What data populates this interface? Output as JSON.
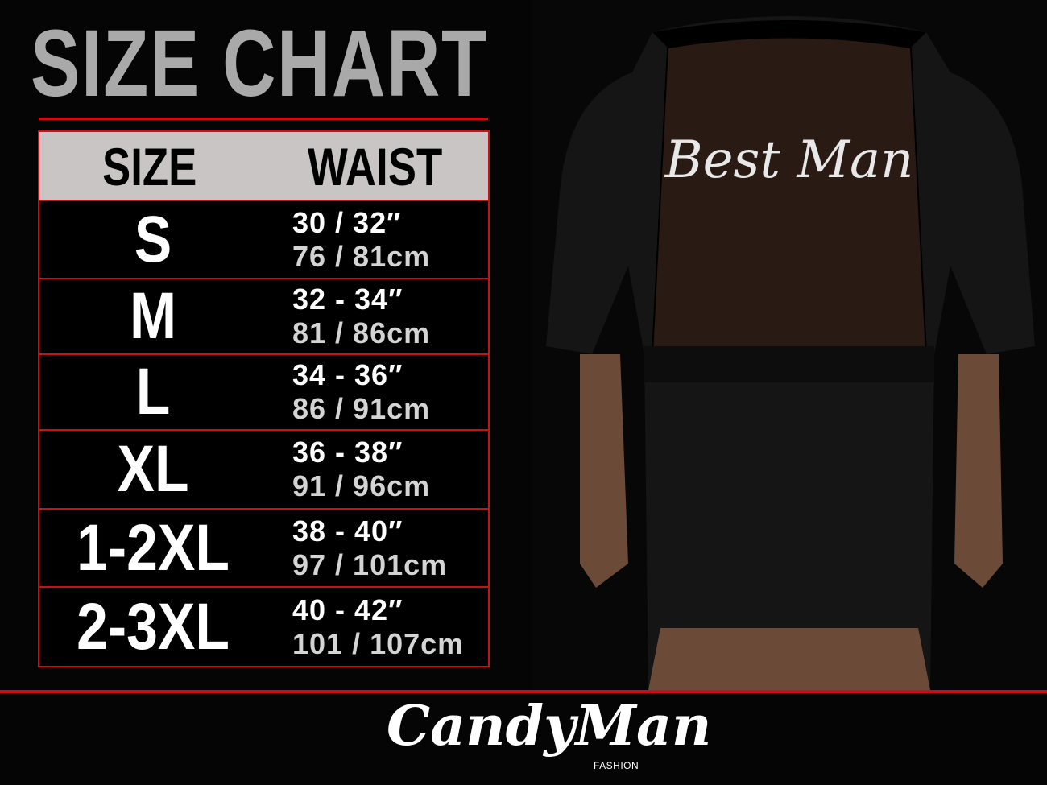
{
  "title": "SIZE CHART",
  "table": {
    "headers": [
      "SIZE",
      "WAIST"
    ],
    "rows": [
      {
        "size": "S",
        "inches": "30 / 32″",
        "cm": "76 / 81cm"
      },
      {
        "size": "M",
        "inches": "32 - 34″",
        "cm": "81 / 86cm"
      },
      {
        "size": "L",
        "inches": "34 - 36″",
        "cm": "86 / 91cm"
      },
      {
        "size": "XL",
        "inches": "36 - 38″",
        "cm": "91 / 96cm"
      },
      {
        "size": "1-2XL",
        "inches": "38 - 40″",
        "cm": "97 / 101cm"
      },
      {
        "size": "2-3XL",
        "inches": "40 - 42″",
        "cm": "101 / 107cm"
      }
    ]
  },
  "photo": {
    "garment_text": "Best Man"
  },
  "brand": {
    "name": "CandyMan",
    "sub": "FASHION"
  },
  "colors": {
    "accent": "#c8101a",
    "title": "#a9a9a9",
    "header_bg": "#c9c5c5",
    "background": "#050505"
  }
}
